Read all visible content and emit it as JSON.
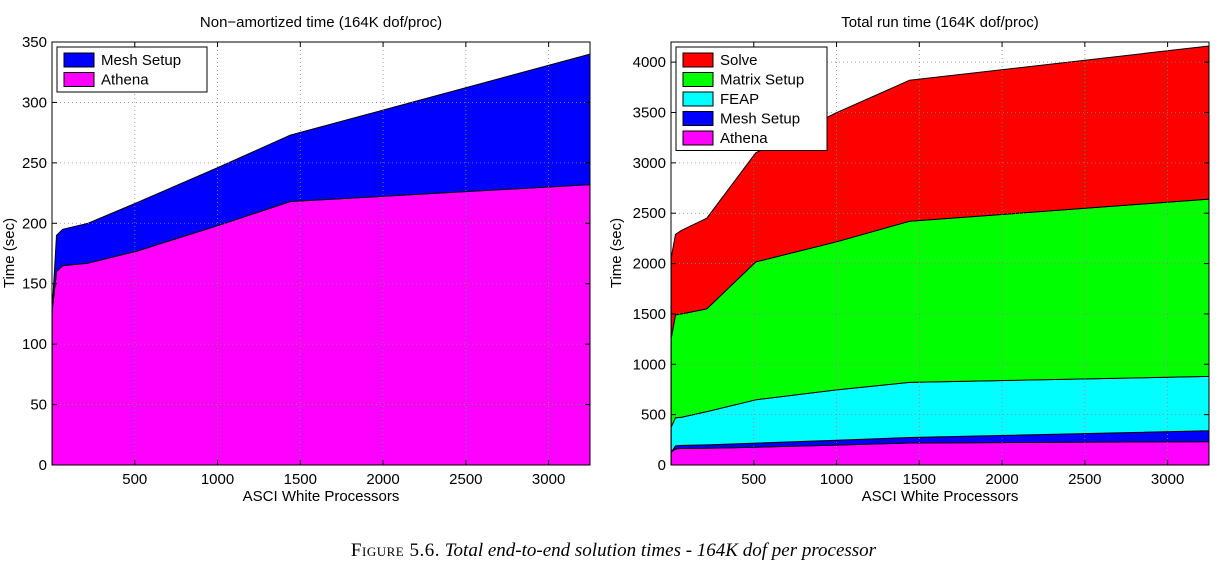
{
  "chart_data": [
    {
      "type": "area",
      "stacked": true,
      "title": "Non−amortized time (164K dof/proc)",
      "xlabel": "ASCI White Processors",
      "ylabel": "Time (sec)",
      "xlim": [
        0,
        3250
      ],
      "ylim": [
        0,
        350
      ],
      "xticks": [
        500,
        1000,
        1500,
        2000,
        2500,
        3000
      ],
      "yticks": [
        0,
        50,
        100,
        150,
        200,
        250,
        300,
        350
      ],
      "grid": true,
      "legend_position": "top-left",
      "x": [
        1,
        27,
        64,
        216,
        512,
        1000,
        1440,
        3250
      ],
      "series": [
        {
          "name": "Athena",
          "color": "#ff00ff",
          "values": [
            128,
            160,
            165,
            167,
            177,
            198,
            218,
            232
          ]
        },
        {
          "name": "Mesh Setup",
          "color": "#0000ff",
          "values": [
            0,
            30,
            30,
            33,
            40,
            48,
            55,
            108
          ]
        }
      ],
      "legend": [
        "Mesh Setup",
        "Athena"
      ]
    },
    {
      "type": "area",
      "stacked": true,
      "title": "Total run time (164K dof/proc)",
      "xlabel": "ASCI White Processors",
      "ylabel": "Time (sec)",
      "xlim": [
        0,
        3250
      ],
      "ylim": [
        0,
        4200
      ],
      "xticks": [
        500,
        1000,
        1500,
        2000,
        2500,
        3000
      ],
      "yticks": [
        0,
        500,
        1000,
        1500,
        2000,
        2500,
        3000,
        3500,
        4000
      ],
      "grid": true,
      "legend_position": "top-left",
      "x": [
        1,
        27,
        64,
        216,
        512,
        1000,
        1440,
        3250
      ],
      "series": [
        {
          "name": "Athena",
          "color": "#ff00ff",
          "values": [
            128,
            160,
            165,
            167,
            177,
            198,
            218,
            232
          ]
        },
        {
          "name": "Mesh Setup",
          "color": "#0000ff",
          "values": [
            0,
            30,
            30,
            33,
            40,
            48,
            55,
            108
          ]
        },
        {
          "name": "FEAP",
          "color": "#00ffff",
          "values": [
            250,
            280,
            280,
            330,
            430,
            500,
            547,
            540
          ]
        },
        {
          "name": "Matrix Setup",
          "color": "#00ff00",
          "values": [
            880,
            1020,
            1025,
            1020,
            1370,
            1470,
            1600,
            1760
          ]
        },
        {
          "name": "Solve",
          "color": "#ff0000",
          "values": [
            800,
            800,
            830,
            900,
            1083,
            1282,
            1400,
            1520
          ]
        }
      ],
      "legend": [
        "Solve",
        "Matrix Setup",
        "FEAP",
        "Mesh Setup",
        "Athena"
      ]
    }
  ],
  "caption": {
    "label": "Figure 5.6.",
    "text": "Total end-to-end solution times - 164K dof per processor"
  }
}
